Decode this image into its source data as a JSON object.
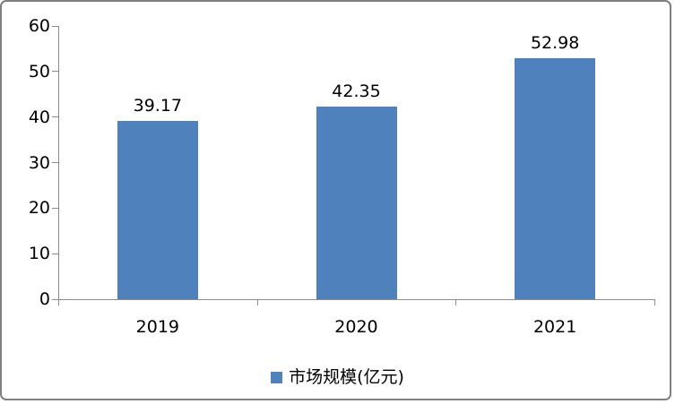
{
  "chart_data": {
    "type": "bar",
    "categories": [
      "2019",
      "2020",
      "2021"
    ],
    "series": [
      {
        "name": "市场规模(亿元)",
        "values": [
          39.17,
          42.35,
          52.98
        ]
      }
    ],
    "data_labels": [
      "39.17",
      "42.35",
      "52.98"
    ],
    "title": "",
    "xlabel": "",
    "ylabel": "",
    "ylim": [
      0,
      60
    ],
    "ytick_step": 10,
    "ytick_labels": [
      "0",
      "10",
      "20",
      "30",
      "40",
      "50",
      "60"
    ],
    "grid": false,
    "legend_position": "bottom",
    "colors": {
      "bar": "#4f81bd",
      "axis": "#8c8c8c",
      "text": "#000000",
      "frame_border": "#7f7f7f",
      "background": "#ffffff"
    }
  }
}
